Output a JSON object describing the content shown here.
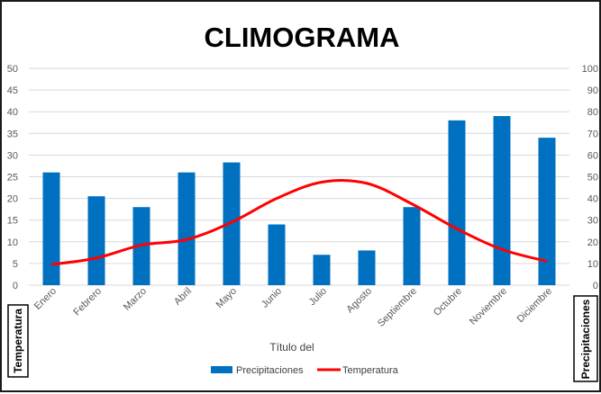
{
  "chart_data": {
    "type": "bar",
    "title": "CLIMOGRAMA",
    "xlabel": "Título del",
    "ylabel_left": "Temperatura",
    "ylabel_right": "Precipitaciones",
    "categories": [
      "Enero",
      "Febrero",
      "Marzo",
      "Abril",
      "Mayo",
      "Junio",
      "Julio",
      "Agosto",
      "Septiembre",
      "Octubre",
      "Noviembre",
      "Diciembre"
    ],
    "ylim_left": [
      0,
      50
    ],
    "ylim_right": [
      0,
      100
    ],
    "yticks_left": [
      "0",
      "5",
      "10",
      "15",
      "20",
      "25",
      "30",
      "35",
      "40",
      "45",
      "50"
    ],
    "yticks_right": [
      "0",
      "10",
      "20",
      "30",
      "40",
      "50",
      "60",
      "70",
      "80",
      "90",
      "100"
    ],
    "grid": true,
    "legend_position": "bottom",
    "series": [
      {
        "name": "Precipitaciones",
        "type": "bar",
        "axis": "left",
        "color": "#0070C0",
        "values": [
          26,
          20.5,
          18,
          26,
          28.3,
          14,
          7,
          8,
          18,
          38,
          39,
          34
        ]
      },
      {
        "name": "Temperatura",
        "type": "line",
        "axis": "right",
        "color": "#FF0000",
        "values": [
          9.5,
          12.5,
          18.5,
          21,
          29,
          40,
          47.5,
          47,
          37.5,
          26,
          16.5,
          11
        ]
      }
    ]
  }
}
